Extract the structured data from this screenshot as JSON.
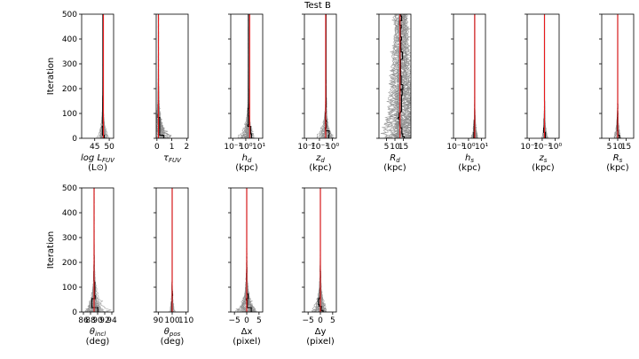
{
  "chart_data": {
    "type": "line",
    "title": "Test B",
    "description_series": [
      "walker chains (grey)",
      "median chain (black)",
      "true value (red)"
    ],
    "panels": [
      {
        "id": "logLFUV",
        "xlabel": "log L_FUV",
        "xlabel_main": "log L",
        "xlabel_sub": "FUV",
        "unit": "(L⊙)",
        "xscale": "linear",
        "xlim": [
          40.5,
          51.5
        ],
        "xticks": [
          45,
          50
        ],
        "xtick_labels": [
          "45",
          "50"
        ],
        "true_value": 48.0,
        "median_final": 47.8,
        "spread_early": 0.8,
        "ylabel": "Iteration"
      },
      {
        "id": "tauFUV",
        "xlabel": "τ_FUV",
        "xlabel_main": "τ",
        "xlabel_sub": "FUV",
        "unit": "",
        "xscale": "linear",
        "xlim": [
          -0.05,
          2.1
        ],
        "xticks": [
          0,
          1,
          2
        ],
        "xtick_labels": [
          "0",
          "1",
          "2"
        ],
        "true_value": 0.1,
        "median_final": 0.1,
        "spread_early": 0.55,
        "ylabel": ""
      },
      {
        "id": "hd",
        "xlabel": "h_d",
        "xlabel_main": "h",
        "xlabel_sub": "d",
        "unit": "(kpc)",
        "xscale": "log",
        "xlim": [
          0.07,
          20
        ],
        "xticks": [
          0.1,
          1,
          10
        ],
        "xtick_labels": [
          "10⁻¹",
          "10⁰",
          "10¹"
        ],
        "true_value": 2.0,
        "median_final": 1.6,
        "spread_early": 1.6,
        "ylabel": ""
      },
      {
        "id": "zd",
        "xlabel": "z_d",
        "xlabel_main": "z",
        "xlabel_sub": "d",
        "unit": "(kpc)",
        "xscale": "log",
        "xlim": [
          0.007,
          2
        ],
        "xticks": [
          0.01,
          0.1,
          1
        ],
        "xtick_labels": [
          "10⁻²",
          "10⁻¹",
          "10⁰"
        ],
        "true_value": 0.3,
        "median_final": 0.32,
        "spread_early": 1.4,
        "ylabel": ""
      },
      {
        "id": "Rd",
        "xlabel": "R_d",
        "xlabel_main": "R",
        "xlabel_sub": "d",
        "unit": "(kpc)",
        "xscale": "linear",
        "xlim": [
          0.5,
          19.5
        ],
        "xticks": [
          5,
          10,
          15
        ],
        "xtick_labels": [
          "5",
          "10",
          "15"
        ],
        "true_value": 13.0,
        "median_final": 13.5,
        "spread_early": 3.5,
        "ylabel": ""
      },
      {
        "id": "hs",
        "xlabel": "h_s",
        "xlabel_main": "h",
        "xlabel_sub": "s",
        "unit": "(kpc)",
        "xscale": "log",
        "xlim": [
          0.07,
          20
        ],
        "xticks": [
          0.1,
          1,
          10
        ],
        "xtick_labels": [
          "10⁻¹",
          "10⁰",
          "10¹"
        ],
        "true_value": 3.0,
        "median_final": 3.0,
        "spread_early": 0.6,
        "ylabel": ""
      },
      {
        "id": "zs",
        "xlabel": "z_s",
        "xlabel_main": "z",
        "xlabel_sub": "s",
        "unit": "(kpc)",
        "xscale": "log",
        "xlim": [
          0.007,
          2
        ],
        "xticks": [
          0.01,
          0.1,
          1
        ],
        "xtick_labels": [
          "10⁻²",
          "10⁻¹",
          "10⁰"
        ],
        "true_value": 0.15,
        "median_final": 0.15,
        "spread_early": 0.4,
        "ylabel": ""
      },
      {
        "id": "Rs",
        "xlabel": "R_s",
        "xlabel_main": "R",
        "xlabel_sub": "s",
        "unit": "(kpc)",
        "xscale": "linear",
        "xlim": [
          0.5,
          19.5
        ],
        "xticks": [
          5,
          10,
          15
        ],
        "xtick_labels": [
          "5",
          "10",
          "15"
        ],
        "true_value": 10.0,
        "median_final": 10.0,
        "spread_early": 1.2,
        "ylabel": ""
      },
      {
        "id": "theta_incl",
        "xlabel": "θ_incl",
        "xlabel_main": "θ",
        "xlabel_sub": "incl",
        "unit": "(deg)",
        "xscale": "linear",
        "xlim": [
          85.5,
          94.5
        ],
        "xticks": [
          86,
          88,
          90,
          92,
          94
        ],
        "xtick_labels": [
          "86",
          "88",
          "90",
          "92",
          "94"
        ],
        "true_value": 89.0,
        "median_final": 89.0,
        "spread_early": 1.8,
        "ylabel": "Iteration"
      },
      {
        "id": "theta_pos",
        "xlabel": "θ_pos",
        "xlabel_main": "θ",
        "xlabel_sub": "pos",
        "unit": "(deg)",
        "xscale": "linear",
        "xlim": [
          88.5,
          111.5
        ],
        "xticks": [
          90,
          100,
          110
        ],
        "xtick_labels": [
          "90",
          "100",
          "110"
        ],
        "true_value": 100.0,
        "median_final": 100.0,
        "spread_early": 1.2,
        "ylabel": ""
      },
      {
        "id": "dx",
        "xlabel": "Δx",
        "xlabel_main": "Δx",
        "xlabel_sub": "",
        "unit": "(pixel)",
        "xscale": "linear",
        "xlim": [
          -6.5,
          6.5
        ],
        "xticks": [
          -5,
          0,
          5
        ],
        "xtick_labels": [
          "−5",
          "0",
          "5"
        ],
        "true_value": 0.0,
        "median_final": 0.0,
        "spread_early": 2.5,
        "ylabel": ""
      },
      {
        "id": "dy",
        "xlabel": "Δy",
        "xlabel_main": "Δy",
        "xlabel_sub": "",
        "unit": "(pixel)",
        "xscale": "linear",
        "xlim": [
          -6.5,
          6.5
        ],
        "xticks": [
          -5,
          0,
          5
        ],
        "xtick_labels": [
          "−5",
          "0",
          "5"
        ],
        "true_value": 0.0,
        "median_final": 0.0,
        "spread_early": 1.8,
        "ylabel": ""
      }
    ],
    "yaxis": {
      "label": "Iteration",
      "range": [
        0,
        500
      ],
      "ticks": [
        0,
        100,
        200,
        300,
        400,
        500
      ],
      "tick_labels": [
        "0",
        "100",
        "200",
        "300",
        "400",
        "500"
      ]
    },
    "grid": false,
    "colors": {
      "walkers": "#8c8c8c",
      "median": "#000000",
      "true_value": "#e8191b"
    }
  }
}
